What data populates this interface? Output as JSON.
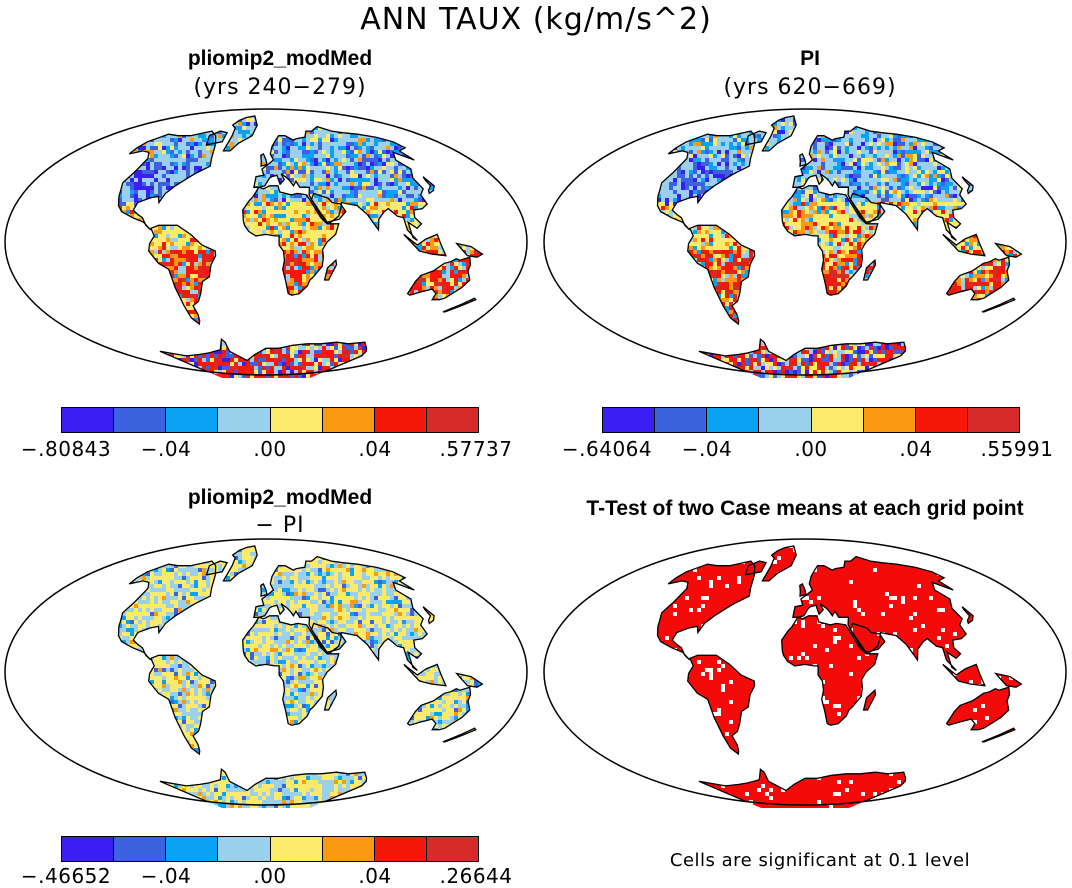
{
  "title": "ANN TAUX (kg/m/s^2)",
  "palette": [
    "#3a1ff2",
    "#3c62e0",
    "#0aa2f2",
    "#9ad0ec",
    "#fbea6c",
    "#f99a12",
    "#f51708",
    "#d72a2b"
  ],
  "land_color": "#9ad0ec",
  "ocean_color": "#ffffff",
  "panels": [
    {
      "id": "pliomip2",
      "title": "pliomip2_modMed",
      "subtitle": "(yrs 240−279)",
      "colorbar": {
        "labels": [
          ".80843",
          "−.04",
          ".00",
          ".04",
          ".57737"
        ],
        "first_label": "−.80843"
      }
    },
    {
      "id": "pi",
      "title": "PI",
      "subtitle": "(yrs 620−669)",
      "colorbar": {
        "labels": [
          ".64064",
          "−.04",
          ".00",
          ".04",
          ".55991"
        ],
        "first_label": "−.64064"
      }
    },
    {
      "id": "diff",
      "title": "pliomip2_modMed",
      "subtitle": "− PI",
      "colorbar": {
        "labels": [
          ".46652",
          "−.04",
          ".00",
          ".04",
          ".26644"
        ],
        "first_label": "−.46652"
      }
    },
    {
      "id": "ttest",
      "title": "T-Test of two Case means at each grid point",
      "significance_color": "#f50a0a",
      "note": "Cells are significant at 0.1 level"
    }
  ]
}
